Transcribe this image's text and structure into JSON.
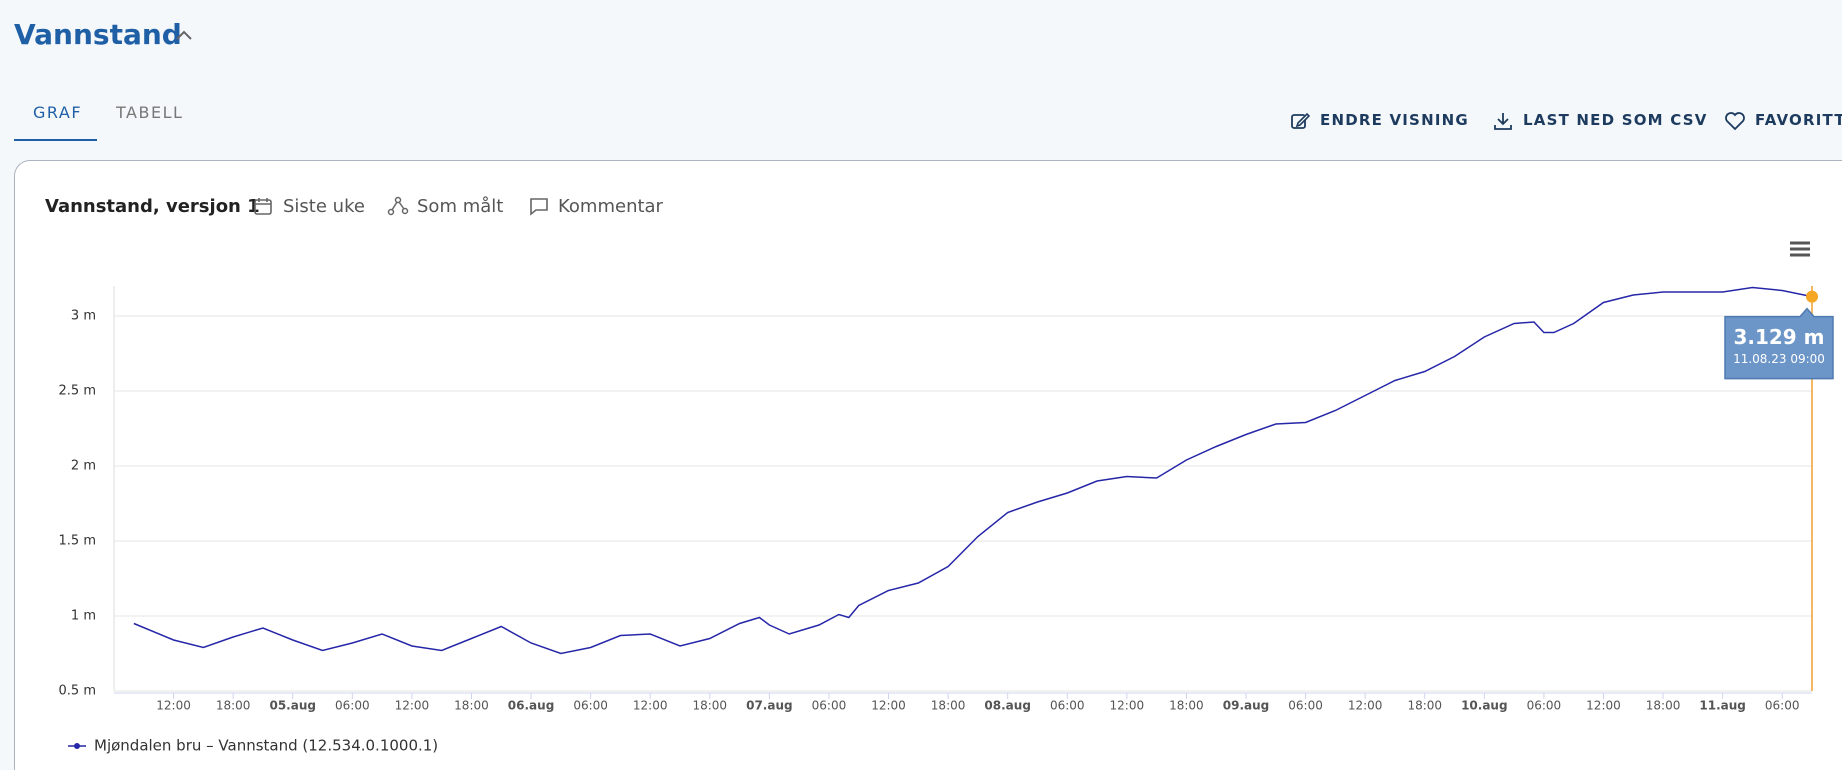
{
  "header": {
    "title": "Vannstand"
  },
  "tabs": [
    "GRAF",
    "TABELL"
  ],
  "actions": [
    "ENDRE VISNING",
    "LAST NED SOM CSV",
    "FAVORITT"
  ],
  "toolbar": {
    "title": "Vannstand, versjon 1",
    "items": [
      "Siste uke",
      "Som målt",
      "Kommentar"
    ]
  },
  "chart_data": {
    "type": "line",
    "x": [
      8,
      12,
      15,
      18,
      21,
      24,
      27,
      30,
      33,
      36,
      39,
      42,
      45,
      48,
      51,
      54,
      57,
      60,
      63,
      66,
      69,
      71,
      72,
      74,
      77,
      79,
      80,
      81,
      84,
      87,
      90,
      93,
      96,
      99,
      102,
      105,
      108,
      111,
      114,
      117,
      120,
      123,
      126,
      129,
      132,
      135,
      138,
      141,
      144,
      147,
      149,
      150,
      151,
      153,
      156,
      159,
      162,
      165,
      168,
      171,
      174,
      177
    ],
    "series": [
      {
        "name": "Mjøndalen bru – Vannstand (12.534.0.1000.1)",
        "color": "#2626a8",
        "values": [
          0.95,
          0.84,
          0.79,
          0.86,
          0.92,
          0.84,
          0.77,
          0.82,
          0.88,
          0.8,
          0.77,
          0.85,
          0.93,
          0.82,
          0.75,
          0.79,
          0.87,
          0.88,
          0.8,
          0.85,
          0.95,
          0.99,
          0.94,
          0.88,
          0.94,
          1.01,
          0.99,
          1.07,
          1.17,
          1.22,
          1.33,
          1.53,
          1.69,
          1.76,
          1.82,
          1.9,
          1.93,
          1.92,
          2.04,
          2.13,
          2.21,
          2.28,
          2.29,
          2.37,
          2.47,
          2.57,
          2.63,
          2.73,
          2.86,
          2.95,
          2.96,
          2.89,
          2.89,
          2.95,
          3.09,
          3.14,
          3.16,
          3.16,
          3.16,
          3.19,
          3.17,
          3.129
        ]
      }
    ],
    "xlim": [
      6,
      177
    ],
    "xticks": [
      {
        "value": 12,
        "label": "12:00"
      },
      {
        "value": 18,
        "label": "18:00"
      },
      {
        "value": 24,
        "label": "05.aug"
      },
      {
        "value": 30,
        "label": "06:00"
      },
      {
        "value": 36,
        "label": "12:00"
      },
      {
        "value": 42,
        "label": "18:00"
      },
      {
        "value": 48,
        "label": "06.aug"
      },
      {
        "value": 54,
        "label": "06:00"
      },
      {
        "value": 60,
        "label": "12:00"
      },
      {
        "value": 66,
        "label": "18:00"
      },
      {
        "value": 72,
        "label": "07.aug"
      },
      {
        "value": 78,
        "label": "06:00"
      },
      {
        "value": 84,
        "label": "12:00"
      },
      {
        "value": 90,
        "label": "18:00"
      },
      {
        "value": 96,
        "label": "08.aug"
      },
      {
        "value": 102,
        "label": "06:00"
      },
      {
        "value": 108,
        "label": "12:00"
      },
      {
        "value": 114,
        "label": "18:00"
      },
      {
        "value": 120,
        "label": "09.aug"
      },
      {
        "value": 126,
        "label": "06:00"
      },
      {
        "value": 132,
        "label": "12:00"
      },
      {
        "value": 138,
        "label": "18:00"
      },
      {
        "value": 144,
        "label": "10.aug"
      },
      {
        "value": 150,
        "label": "06:00"
      },
      {
        "value": 156,
        "label": "12:00"
      },
      {
        "value": 162,
        "label": "18:00"
      },
      {
        "value": 168,
        "label": "11.aug"
      },
      {
        "value": 174,
        "label": "06:00"
      }
    ],
    "ylim": [
      0.5,
      3.2
    ],
    "yticks": [
      {
        "value": 0.5,
        "label": "0.5 m"
      },
      {
        "value": 1,
        "label": "1 m"
      },
      {
        "value": 1.5,
        "label": "1.5 m"
      },
      {
        "value": 2,
        "label": "2 m"
      },
      {
        "value": 2.5,
        "label": "2.5 m"
      },
      {
        "value": 3,
        "label": "3 m"
      }
    ],
    "grid": true,
    "tooltip": {
      "x": 177,
      "value": 3.129,
      "label": "3.129 m",
      "time": "11.08.23 09:00"
    }
  }
}
